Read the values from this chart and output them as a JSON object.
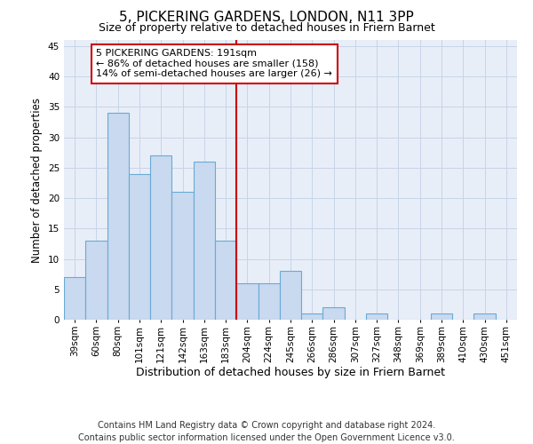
{
  "title": "5, PICKERING GARDENS, LONDON, N11 3PP",
  "subtitle": "Size of property relative to detached houses in Friern Barnet",
  "xlabel": "Distribution of detached houses by size in Friern Barnet",
  "ylabel": "Number of detached properties",
  "categories": [
    "39sqm",
    "60sqm",
    "80sqm",
    "101sqm",
    "121sqm",
    "142sqm",
    "163sqm",
    "183sqm",
    "204sqm",
    "224sqm",
    "245sqm",
    "266sqm",
    "286sqm",
    "307sqm",
    "327sqm",
    "348sqm",
    "369sqm",
    "389sqm",
    "410sqm",
    "430sqm",
    "451sqm"
  ],
  "values": [
    7,
    13,
    34,
    24,
    27,
    21,
    26,
    13,
    6,
    6,
    8,
    1,
    2,
    0,
    1,
    0,
    0,
    1,
    0,
    1,
    0
  ],
  "bar_color": "#c8d9f0",
  "bar_edge_color": "#6aaad4",
  "bar_linewidth": 0.8,
  "vline_pos": 7.5,
  "vline_color": "#cc0000",
  "vline_linewidth": 1.5,
  "annotation_text": "5 PICKERING GARDENS: 191sqm\n← 86% of detached houses are smaller (158)\n14% of semi-detached houses are larger (26) →",
  "annotation_box_edgecolor": "#cc0000",
  "annotation_box_facecolor": "#ffffff",
  "ylim": [
    0,
    46
  ],
  "yticks": [
    0,
    5,
    10,
    15,
    20,
    25,
    30,
    35,
    40,
    45
  ],
  "grid_color": "#c8d4e8",
  "bg_color": "#e8eef8",
  "footer": "Contains HM Land Registry data © Crown copyright and database right 2024.\nContains public sector information licensed under the Open Government Licence v3.0.",
  "title_fontsize": 11,
  "subtitle_fontsize": 9,
  "xlabel_fontsize": 9,
  "ylabel_fontsize": 8.5,
  "tick_fontsize": 7.5,
  "footer_fontsize": 7,
  "annot_fontsize": 8
}
